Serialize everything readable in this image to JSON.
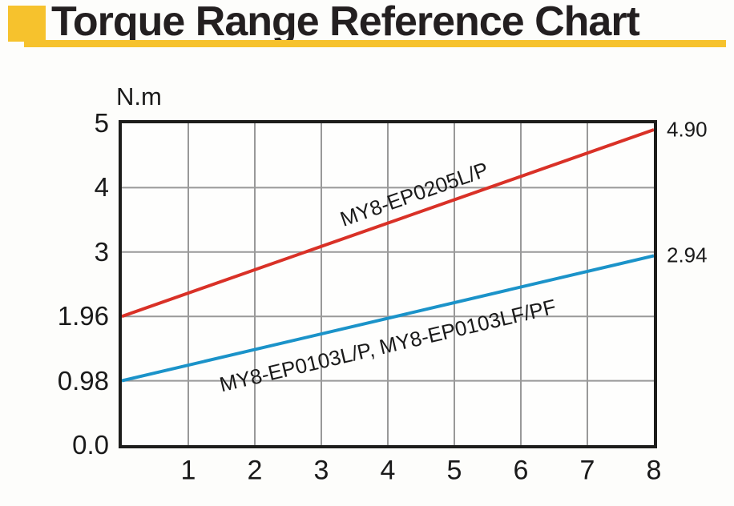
{
  "header": {
    "title": "Torque Range Reference Chart",
    "accent_color": "#f6c22d"
  },
  "chart_data": {
    "type": "line",
    "title": "Torque Range Reference Chart",
    "grid": true,
    "y_axis": {
      "unit_label": "N.m",
      "tick_labels": [
        "5",
        "4",
        "3",
        "1.96",
        "0.98",
        "0.0"
      ],
      "tick_values": [
        5,
        4,
        3,
        1.96,
        0.98,
        0
      ]
    },
    "x_axis": {
      "min": 0,
      "max": 8,
      "tick_labels": [
        "1",
        "2",
        "3",
        "4",
        "5",
        "6",
        "7",
        "8"
      ],
      "tick_values": [
        1,
        2,
        3,
        4,
        5,
        6,
        7,
        8
      ]
    },
    "series": [
      {
        "name": "MY8-EP0205L/P",
        "color": "#d93127",
        "points": [
          [
            0,
            1.96
          ],
          [
            8,
            4.9
          ]
        ],
        "end_label": "4.90"
      },
      {
        "name": "MY8-EP0103L/P, MY8-EP0103LF/PF",
        "color": "#1b93c9",
        "points": [
          [
            0,
            0.98
          ],
          [
            8,
            2.94
          ]
        ],
        "end_label": "2.94"
      }
    ],
    "colors": {
      "grid": "#999999",
      "border": "#1d1d1b",
      "text": "#1a1a1a"
    }
  }
}
